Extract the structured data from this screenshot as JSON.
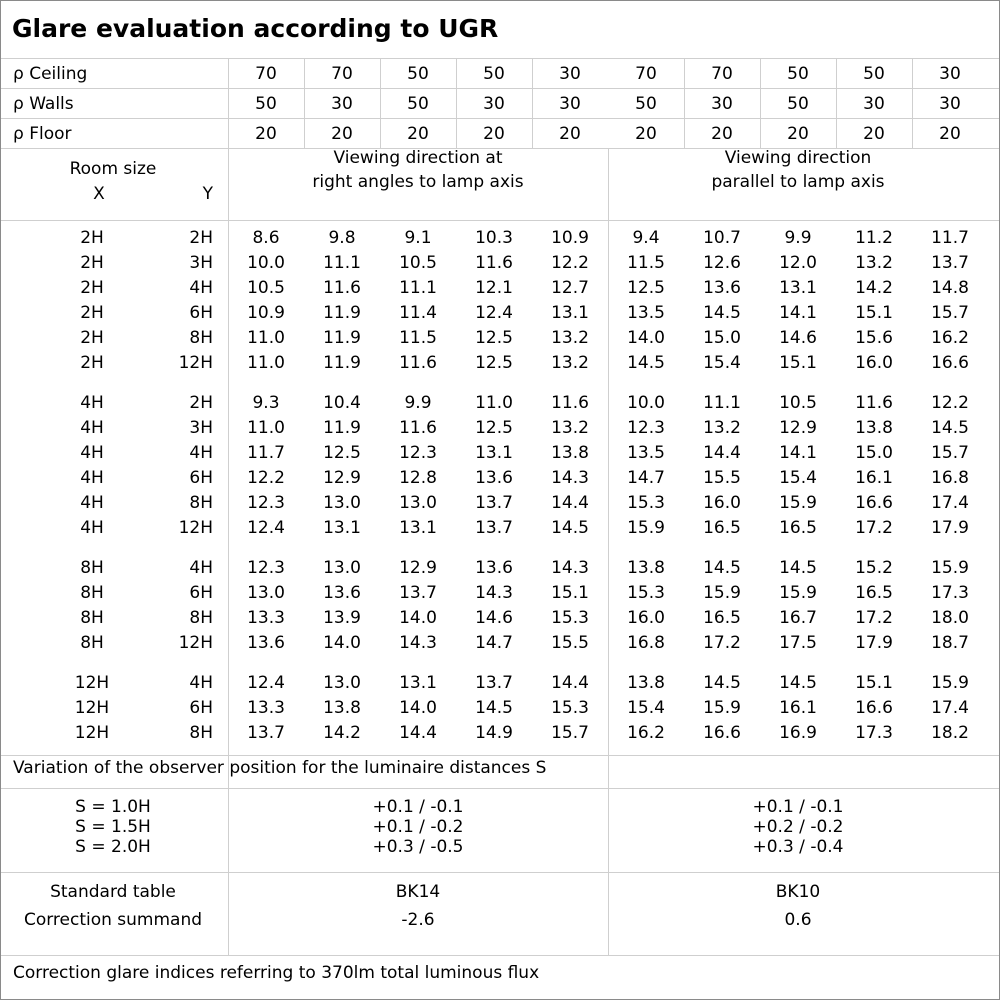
{
  "title": "Glare evaluation according to UGR",
  "reflectance_rows": [
    {
      "label": "ρ Ceiling",
      "values": [
        "70",
        "70",
        "50",
        "50",
        "30",
        "70",
        "70",
        "50",
        "50",
        "30"
      ]
    },
    {
      "label": "ρ Walls",
      "values": [
        "50",
        "30",
        "50",
        "30",
        "30",
        "50",
        "30",
        "50",
        "30",
        "30"
      ]
    },
    {
      "label": "ρ Floor",
      "values": [
        "20",
        "20",
        "20",
        "20",
        "20",
        "20",
        "20",
        "20",
        "20",
        "20"
      ]
    }
  ],
  "room_size_header": {
    "label": "Room size",
    "x": "X",
    "y": "Y"
  },
  "direction_headers": [
    [
      "Viewing direction at",
      "right angles to lamp axis"
    ],
    [
      "Viewing direction",
      "parallel to lamp axis"
    ]
  ],
  "groups": [
    [
      {
        "x": "2H",
        "y": "2H",
        "values": [
          "8.6",
          "9.8",
          "9.1",
          "10.3",
          "10.9",
          "9.4",
          "10.7",
          "9.9",
          "11.2",
          "11.7"
        ]
      },
      {
        "x": "2H",
        "y": "3H",
        "values": [
          "10.0",
          "11.1",
          "10.5",
          "11.6",
          "12.2",
          "11.5",
          "12.6",
          "12.0",
          "13.2",
          "13.7"
        ]
      },
      {
        "x": "2H",
        "y": "4H",
        "values": [
          "10.5",
          "11.6",
          "11.1",
          "12.1",
          "12.7",
          "12.5",
          "13.6",
          "13.1",
          "14.2",
          "14.8"
        ]
      },
      {
        "x": "2H",
        "y": "6H",
        "values": [
          "10.9",
          "11.9",
          "11.4",
          "12.4",
          "13.1",
          "13.5",
          "14.5",
          "14.1",
          "15.1",
          "15.7"
        ]
      },
      {
        "x": "2H",
        "y": "8H",
        "values": [
          "11.0",
          "11.9",
          "11.5",
          "12.5",
          "13.2",
          "14.0",
          "15.0",
          "14.6",
          "15.6",
          "16.2"
        ]
      },
      {
        "x": "2H",
        "y": "12H",
        "values": [
          "11.0",
          "11.9",
          "11.6",
          "12.5",
          "13.2",
          "14.5",
          "15.4",
          "15.1",
          "16.0",
          "16.6"
        ]
      }
    ],
    [
      {
        "x": "4H",
        "y": "2H",
        "values": [
          "9.3",
          "10.4",
          "9.9",
          "11.0",
          "11.6",
          "10.0",
          "11.1",
          "10.5",
          "11.6",
          "12.2"
        ]
      },
      {
        "x": "4H",
        "y": "3H",
        "values": [
          "11.0",
          "11.9",
          "11.6",
          "12.5",
          "13.2",
          "12.3",
          "13.2",
          "12.9",
          "13.8",
          "14.5"
        ]
      },
      {
        "x": "4H",
        "y": "4H",
        "values": [
          "11.7",
          "12.5",
          "12.3",
          "13.1",
          "13.8",
          "13.5",
          "14.4",
          "14.1",
          "15.0",
          "15.7"
        ]
      },
      {
        "x": "4H",
        "y": "6H",
        "values": [
          "12.2",
          "12.9",
          "12.8",
          "13.6",
          "14.3",
          "14.7",
          "15.5",
          "15.4",
          "16.1",
          "16.8"
        ]
      },
      {
        "x": "4H",
        "y": "8H",
        "values": [
          "12.3",
          "13.0",
          "13.0",
          "13.7",
          "14.4",
          "15.3",
          "16.0",
          "15.9",
          "16.6",
          "17.4"
        ]
      },
      {
        "x": "4H",
        "y": "12H",
        "values": [
          "12.4",
          "13.1",
          "13.1",
          "13.7",
          "14.5",
          "15.9",
          "16.5",
          "16.5",
          "17.2",
          "17.9"
        ]
      }
    ],
    [
      {
        "x": "8H",
        "y": "4H",
        "values": [
          "12.3",
          "13.0",
          "12.9",
          "13.6",
          "14.3",
          "13.8",
          "14.5",
          "14.5",
          "15.2",
          "15.9"
        ]
      },
      {
        "x": "8H",
        "y": "6H",
        "values": [
          "13.0",
          "13.6",
          "13.7",
          "14.3",
          "15.1",
          "15.3",
          "15.9",
          "15.9",
          "16.5",
          "17.3"
        ]
      },
      {
        "x": "8H",
        "y": "8H",
        "values": [
          "13.3",
          "13.9",
          "14.0",
          "14.6",
          "15.3",
          "16.0",
          "16.5",
          "16.7",
          "17.2",
          "18.0"
        ]
      },
      {
        "x": "8H",
        "y": "12H",
        "values": [
          "13.6",
          "14.0",
          "14.3",
          "14.7",
          "15.5",
          "16.8",
          "17.2",
          "17.5",
          "17.9",
          "18.7"
        ]
      }
    ],
    [
      {
        "x": "12H",
        "y": "4H",
        "values": [
          "12.4",
          "13.0",
          "13.1",
          "13.7",
          "14.4",
          "13.8",
          "14.5",
          "14.5",
          "15.1",
          "15.9"
        ]
      },
      {
        "x": "12H",
        "y": "6H",
        "values": [
          "13.3",
          "13.8",
          "14.0",
          "14.5",
          "15.3",
          "15.4",
          "15.9",
          "16.1",
          "16.6",
          "17.4"
        ]
      },
      {
        "x": "12H",
        "y": "8H",
        "values": [
          "13.7",
          "14.2",
          "14.4",
          "14.9",
          "15.7",
          "16.2",
          "16.6",
          "16.9",
          "17.3",
          "18.2"
        ]
      }
    ]
  ],
  "variation_title": "Variation of the observer position for the luminaire distances S",
  "variation_rows": [
    {
      "label": "S = 1.0H",
      "right_angles": "+0.1 / -0.1",
      "parallel": "+0.1 / -0.1"
    },
    {
      "label": "S = 1.5H",
      "right_angles": "+0.1 / -0.2",
      "parallel": "+0.2 / -0.2"
    },
    {
      "label": "S = 2.0H",
      "right_angles": "+0.3 / -0.5",
      "parallel": "+0.3 / -0.4"
    }
  ],
  "standard": {
    "labels": [
      "Standard table",
      "Correction summand"
    ],
    "right_angles": [
      "BK14",
      "-2.6"
    ],
    "parallel": [
      "BK10",
      "0.6"
    ]
  },
  "footer": "Correction glare indices referring to 370lm total luminous flux"
}
